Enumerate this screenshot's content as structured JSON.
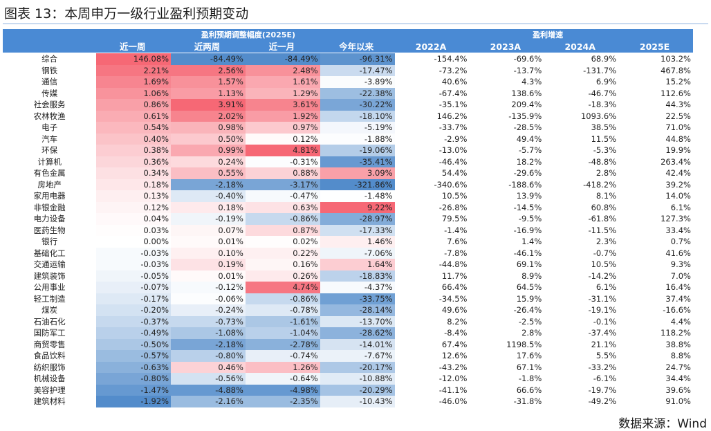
{
  "title": "图表 13：本周申万一级行业盈利预期变动",
  "source": "数据来源：Wind",
  "header_groups": {
    "revision": "盈利预期调整幅度(2025E)",
    "growth": "盈利增速"
  },
  "columns": [
    "近一周",
    "近两周",
    "近一月",
    "今年以来",
    "2022A",
    "2023A",
    "2024A",
    "2025E"
  ],
  "rows": [
    {
      "name": "综合",
      "vals": [
        "146.08%",
        "-84.49%",
        "-84.49%",
        "-96.31%",
        "-154.4%",
        "-69.6%",
        "68.9%",
        "103.2%"
      ]
    },
    {
      "name": "钢铁",
      "vals": [
        "2.21%",
        "2.56%",
        "2.48%",
        "-17.47%",
        "-73.2%",
        "-13.7%",
        "-131.7%",
        "467.8%"
      ]
    },
    {
      "name": "通信",
      "vals": [
        "1.69%",
        "1.57%",
        "1.61%",
        "-3.89%",
        "40.6%",
        "4.3%",
        "6.9%",
        "15.2%"
      ]
    },
    {
      "name": "传媒",
      "vals": [
        "1.06%",
        "1.13%",
        "1.29%",
        "-22.38%",
        "-67.4%",
        "138.6%",
        "-46.7%",
        "112.6%"
      ]
    },
    {
      "name": "社会服务",
      "vals": [
        "0.86%",
        "3.91%",
        "3.61%",
        "-30.22%",
        "-35.1%",
        "209.4%",
        "-18.3%",
        "44.3%"
      ]
    },
    {
      "name": "农林牧渔",
      "vals": [
        "0.61%",
        "2.02%",
        "1.92%",
        "-18.10%",
        "146.2%",
        "-135.9%",
        "1093.6%",
        "22.5%"
      ]
    },
    {
      "name": "电子",
      "vals": [
        "0.54%",
        "0.98%",
        "0.97%",
        "-5.19%",
        "-33.7%",
        "-28.5%",
        "38.5%",
        "71.0%"
      ]
    },
    {
      "name": "汽车",
      "vals": [
        "0.40%",
        "0.50%",
        "0.12%",
        "-1.88%",
        "-2.9%",
        "49.4%",
        "11.5%",
        "44.8%"
      ]
    },
    {
      "name": "环保",
      "vals": [
        "0.38%",
        "0.99%",
        "4.81%",
        "-19.06%",
        "-13.0%",
        "-5.7%",
        "-5.3%",
        "19.9%"
      ]
    },
    {
      "name": "计算机",
      "vals": [
        "0.36%",
        "0.24%",
        "-0.31%",
        "-35.41%",
        "-46.4%",
        "18.2%",
        "-48.8%",
        "263.4%"
      ]
    },
    {
      "name": "有色金属",
      "vals": [
        "0.34%",
        "0.55%",
        "0.88%",
        "3.09%",
        "54.4%",
        "-29.6%",
        "2.8%",
        "42.4%"
      ]
    },
    {
      "name": "房地产",
      "vals": [
        "0.18%",
        "-2.18%",
        "-3.17%",
        "-321.86%",
        "-340.6%",
        "-188.6%",
        "-418.2%",
        "39.2%"
      ]
    },
    {
      "name": "家用电器",
      "vals": [
        "0.13%",
        "-0.40%",
        "-0.47%",
        "-1.48%",
        "10.5%",
        "13.9%",
        "8.1%",
        "14.0%"
      ]
    },
    {
      "name": "非银金融",
      "vals": [
        "0.12%",
        "0.18%",
        "0.63%",
        "9.22%",
        "-26.8%",
        "-14.5%",
        "60.8%",
        "6.1%"
      ]
    },
    {
      "name": "电力设备",
      "vals": [
        "0.04%",
        "-0.19%",
        "-0.86%",
        "-28.97%",
        "79.5%",
        "-9.5%",
        "-61.8%",
        "127.3%"
      ]
    },
    {
      "name": "医药生物",
      "vals": [
        "0.03%",
        "0.07%",
        "0.87%",
        "-17.33%",
        "-1.4%",
        "-16.9%",
        "-11.5%",
        "33.4%"
      ]
    },
    {
      "name": "银行",
      "vals": [
        "0.00%",
        "0.01%",
        "0.02%",
        "1.46%",
        "7.6%",
        "1.4%",
        "2.3%",
        "0.7%"
      ]
    },
    {
      "name": "基础化工",
      "vals": [
        "-0.03%",
        "0.10%",
        "0.22%",
        "-7.06%",
        "-7.8%",
        "-46.1%",
        "-0.7%",
        "41.6%"
      ]
    },
    {
      "name": "交通运输",
      "vals": [
        "-0.03%",
        "0.19%",
        "0.16%",
        "1.64%",
        "-44.8%",
        "69.1%",
        "10.5%",
        "9.3%"
      ]
    },
    {
      "name": "建筑装饰",
      "vals": [
        "-0.05%",
        "0.01%",
        "0.26%",
        "-18.83%",
        "11.7%",
        "8.9%",
        "-14.2%",
        "7.0%"
      ]
    },
    {
      "name": "公用事业",
      "vals": [
        "-0.07%",
        "-0.12%",
        "4.74%",
        "-4.37%",
        "66.4%",
        "64.5%",
        "6.1%",
        "16.4%"
      ]
    },
    {
      "name": "轻工制造",
      "vals": [
        "-0.17%",
        "-0.06%",
        "-0.86%",
        "-33.75%",
        "-34.5%",
        "15.9%",
        "-31.1%",
        "37.4%"
      ]
    },
    {
      "name": "煤炭",
      "vals": [
        "-0.20%",
        "-0.24%",
        "-0.78%",
        "-28.14%",
        "49.6%",
        "-26.4%",
        "-19.1%",
        "-16.6%"
      ]
    },
    {
      "name": "石油石化",
      "vals": [
        "-0.37%",
        "-0.73%",
        "-1.61%",
        "-13.70%",
        "8.2%",
        "-2.5%",
        "-0.1%",
        "4.4%"
      ]
    },
    {
      "name": "国防军工",
      "vals": [
        "-0.49%",
        "-1.08%",
        "-1.04%",
        "-28.62%",
        "-8.4%",
        "2.8%",
        "-37.4%",
        "118.2%"
      ]
    },
    {
      "name": "商贸零售",
      "vals": [
        "-0.50%",
        "-2.18%",
        "-2.78%",
        "-14.01%",
        "67.4%",
        "1198.5%",
        "21.1%",
        "38.8%"
      ]
    },
    {
      "name": "食品饮料",
      "vals": [
        "-0.57%",
        "-0.80%",
        "-0.74%",
        "-7.67%",
        "12.6%",
        "17.6%",
        "5.5%",
        "8.8%"
      ]
    },
    {
      "name": "纺织服饰",
      "vals": [
        "-0.63%",
        "0.46%",
        "1.26%",
        "-20.17%",
        "-43.2%",
        "67.1%",
        "-33.2%",
        "24.7%"
      ]
    },
    {
      "name": "机械设备",
      "vals": [
        "-0.80%",
        "-0.56%",
        "-0.64%",
        "-10.88%",
        "-12.0%",
        "-1.8%",
        "-6.1%",
        "34.4%"
      ]
    },
    {
      "name": "美容护理",
      "vals": [
        "-1.47%",
        "-4.88%",
        "-4.98%",
        "-20.29%",
        "-41.1%",
        "66.6%",
        "-19.7%",
        "39.6%"
      ]
    },
    {
      "name": "建筑材料",
      "vals": [
        "-1.92%",
        "-2.16%",
        "-2.35%",
        "-10.43%",
        "-46.0%",
        "-31.8%",
        "-49.2%",
        "91.0%"
      ]
    }
  ],
  "colors": {
    "header": "#4a8ad4",
    "positive": "#f5606e",
    "negative": "#4a86c8"
  }
}
